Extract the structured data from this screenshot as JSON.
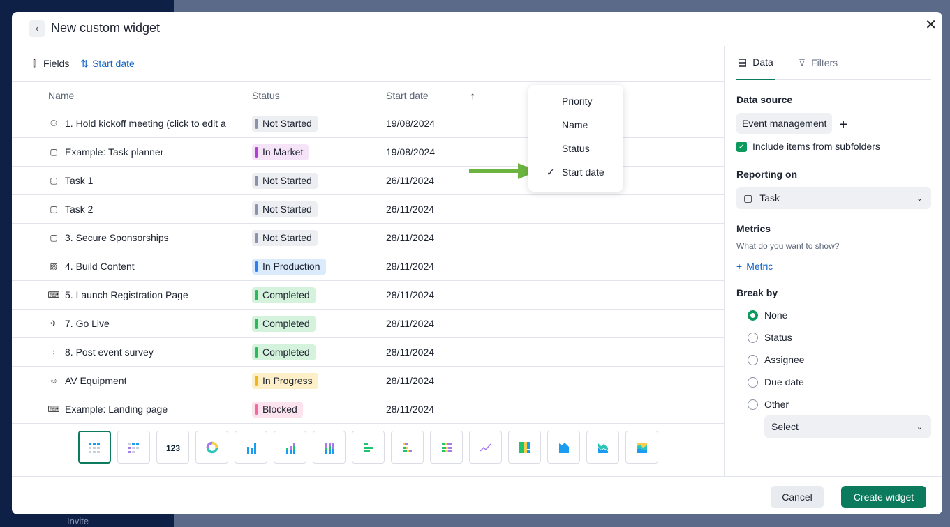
{
  "background": {
    "invite": "Invite"
  },
  "modal": {
    "title": "New custom widget"
  },
  "toolbar": {
    "fields": "Fields",
    "sort": "Start date"
  },
  "table": {
    "headers": [
      "Name",
      "Status",
      "Start date"
    ],
    "rows": [
      {
        "icon": "milestone-icon",
        "name": "1. Hold kickoff meeting (click to edit a",
        "status": "Not Started",
        "date": "19/08/2024"
      },
      {
        "icon": "task-icon",
        "name": "Example: Task planner",
        "status": "In Market",
        "date": "19/08/2024"
      },
      {
        "icon": "task-icon",
        "name": "Task 1",
        "status": "Not Started",
        "date": "26/11/2024"
      },
      {
        "icon": "task-icon",
        "name": "Task 2",
        "status": "Not Started",
        "date": "26/11/2024"
      },
      {
        "icon": "task-icon",
        "name": "3. Secure Sponsorships",
        "status": "Not Started",
        "date": "28/11/2024"
      },
      {
        "icon": "image-icon",
        "name": "4. Build Content",
        "status": "In Production",
        "date": "28/11/2024"
      },
      {
        "icon": "code-page-icon",
        "name": "5. Launch Registration Page",
        "status": "Completed",
        "date": "28/11/2024"
      },
      {
        "icon": "rocket-icon",
        "name": "7. Go Live",
        "status": "Completed",
        "date": "28/11/2024"
      },
      {
        "icon": "chart-icon",
        "name": "8. Post event survey",
        "status": "Completed",
        "date": "28/11/2024"
      },
      {
        "icon": "person-icon",
        "name": "AV Equipment",
        "status": "In Progress",
        "date": "28/11/2024"
      },
      {
        "icon": "code-page-icon",
        "name": "Example: Landing page",
        "status": "Blocked",
        "date": "28/11/2024"
      }
    ]
  },
  "status_colors": {
    "Not Started": [
      "#eceef2",
      "#8a93a8"
    ],
    "In Market": [
      "#f5e3f8",
      "#b040d0"
    ],
    "In Production": [
      "#dcebfb",
      "#2f80ed"
    ],
    "Completed": [
      "#d5f2dd",
      "#2eb85c"
    ],
    "In Progress": [
      "#fdf0c8",
      "#f2b51c"
    ],
    "Blocked": [
      "#fde3ee",
      "#f06aa0"
    ]
  },
  "sort_menu": {
    "items": [
      "Priority",
      "Name",
      "Status",
      "Start date"
    ],
    "selected": "Start date"
  },
  "chart_types": [
    "table",
    "pivot-table",
    "number",
    "donut",
    "bar",
    "stacked-bar",
    "stacked-bar-100",
    "horizontal-bar",
    "stacked-horizontal-bar",
    "stacked-horizontal-bar-100",
    "line",
    "treemap",
    "area",
    "stacked-area",
    "stacked-area-100"
  ],
  "chart_number_label": "123",
  "panel": {
    "tabs": [
      "Data",
      "Filters"
    ],
    "data_source_label": "Data source",
    "data_source": "Event management",
    "include_sub": "Include items from subfolders",
    "reporting_label": "Reporting on",
    "reporting": "Task",
    "metrics_label": "Metrics",
    "metrics_hint": "What do you want to show?",
    "add_metric": "Metric",
    "break_label": "Break by",
    "break_options": [
      "None",
      "Status",
      "Assignee",
      "Due date",
      "Other"
    ],
    "break_selected": "None",
    "other_select": "Select"
  },
  "footer": {
    "cancel": "Cancel",
    "create": "Create widget"
  },
  "accent": "#0c7a5c"
}
